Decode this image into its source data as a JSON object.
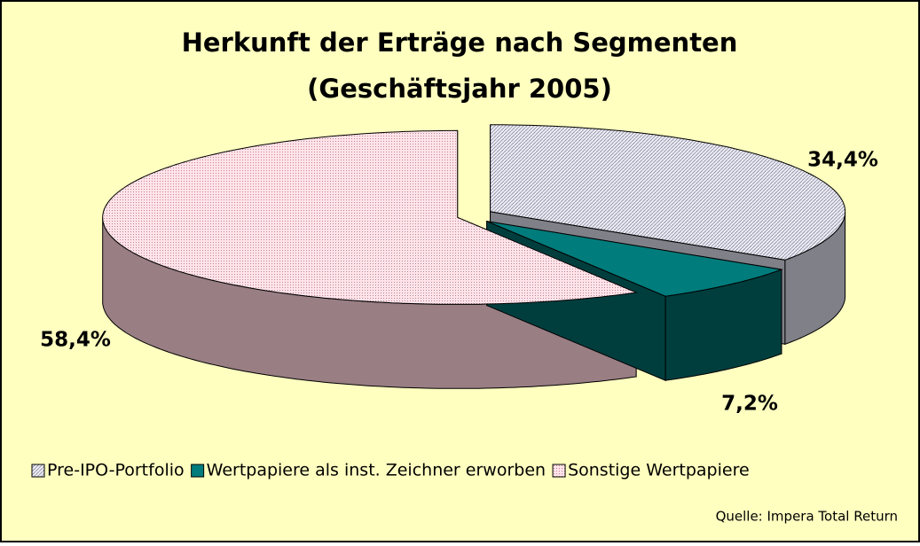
{
  "chart_data": {
    "type": "pie3d",
    "title": [
      "Herkunft der Erträge nach Segmenten",
      "(Geschäftsjahr 2005)"
    ],
    "categories": [
      "Pre-IPO-Portfolio",
      "Wertpapiere als inst. Zeichner erworben",
      "Sonstige Wertpapiere"
    ],
    "values": [
      34.4,
      7.2,
      58.4
    ],
    "value_labels": [
      "34,4%",
      "7,2%",
      "58,4%"
    ],
    "colors": [
      "#d6d6e4",
      "#007c7c",
      "#ffd2dc"
    ],
    "source": "Quelle: Impera Total Return"
  }
}
